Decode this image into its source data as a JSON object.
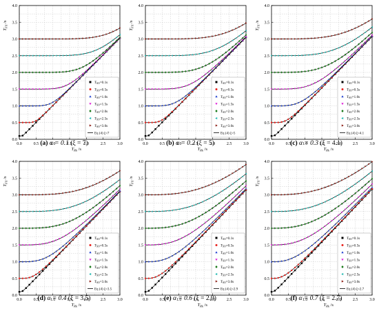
{
  "chart_data": [
    {
      "type": "line",
      "panel_label": "(a)",
      "alpha_label": "α = 0.1",
      "xi_label": "(ξ = 7)",
      "eq_label": "Eq (4) ξ=7",
      "alpha": 0.1,
      "xi": 7,
      "x_axis": {
        "label_main": "T",
        "label_sub": "Rk",
        "label_unit": "/s",
        "ticks": [
          "0.0",
          "0.5",
          "1.0",
          "1.5",
          "2.0",
          "2.5",
          "3.0"
        ],
        "range": [
          0,
          3
        ]
      },
      "y_axis": {
        "label_main": "T",
        "label_sub": "FX",
        "label_unit": "/s",
        "ticks": [
          "0.0",
          "0.5",
          "1.0",
          "1.5",
          "2.0",
          "2.5",
          "3.0",
          "3.5",
          "4.0"
        ],
        "range": [
          0,
          4
        ]
      },
      "grid": true,
      "legend_position": "bottom-right",
      "series": [
        {
          "name": "0.1s",
          "T0": 0.1,
          "color": "#000000",
          "marker": "square"
        },
        {
          "name": "0.5s",
          "T0": 0.5,
          "color": "#e8231e",
          "marker": "circle"
        },
        {
          "name": "1.0s",
          "T0": 1.0,
          "color": "#1f3fd0",
          "marker": "triangle-up"
        },
        {
          "name": "1.5s",
          "T0": 1.5,
          "color": "#e020d8",
          "marker": "triangle-down"
        },
        {
          "name": "2.0s",
          "T0": 2.0,
          "color": "#1a7a1a",
          "marker": "diamond"
        },
        {
          "name": "2.5s",
          "T0": 2.5,
          "color": "#1fb8b0",
          "marker": "triangle-left"
        },
        {
          "name": "3.0s",
          "T0": 3.0,
          "color": "#8a1a10",
          "marker": "triangle-right"
        }
      ]
    },
    {
      "type": "line",
      "panel_label": "(b)",
      "alpha_label": "α = 0.2",
      "xi_label": "(ξ = 5)",
      "eq_label": "Eq (4) ξ=5",
      "alpha": 0.2,
      "xi": 5,
      "x_axis": {
        "label_main": "T",
        "label_sub": "Rk",
        "label_unit": "/s",
        "ticks": [
          "0.0",
          "0.5",
          "1.0",
          "1.5",
          "2.0",
          "2.5",
          "3.0"
        ],
        "range": [
          0,
          3
        ]
      },
      "y_axis": {
        "label_main": "T",
        "label_sub": "FX",
        "label_unit": "/s",
        "ticks": [
          "0.0",
          "0.5",
          "1.0",
          "1.5",
          "2.0",
          "2.5",
          "3.0",
          "3.5",
          "4.0"
        ],
        "range": [
          0,
          4
        ]
      },
      "grid": true,
      "legend_position": "bottom-right",
      "series": [
        {
          "name": "0.1s",
          "T0": 0.1,
          "color": "#000000",
          "marker": "square"
        },
        {
          "name": "0.5s",
          "T0": 0.5,
          "color": "#e8231e",
          "marker": "circle"
        },
        {
          "name": "1.0s",
          "T0": 1.0,
          "color": "#1f3fd0",
          "marker": "triangle-up"
        },
        {
          "name": "1.5s",
          "T0": 1.5,
          "color": "#e020d8",
          "marker": "triangle-down"
        },
        {
          "name": "2.0s",
          "T0": 2.0,
          "color": "#1a7a1a",
          "marker": "diamond"
        },
        {
          "name": "2.5s",
          "T0": 2.5,
          "color": "#1fb8b0",
          "marker": "triangle-left"
        },
        {
          "name": "3.0s",
          "T0": 3.0,
          "color": "#8a1a10",
          "marker": "triangle-right"
        }
      ]
    },
    {
      "type": "line",
      "panel_label": "(c)",
      "alpha_label": "α = 0.3",
      "xi_label": "(ξ = 4.1)",
      "eq_label": "Eq (4) ξ=4.1",
      "alpha": 0.3,
      "xi": 4.1,
      "x_axis": {
        "label_main": "T",
        "label_sub": "Rk",
        "label_unit": "/s",
        "ticks": [
          "0.0",
          "0.5",
          "1.0",
          "1.5",
          "2.0",
          "2.5",
          "3.0"
        ],
        "range": [
          0,
          3
        ]
      },
      "y_axis": {
        "label_main": "T",
        "label_sub": "FX",
        "label_unit": "/s",
        "ticks": [
          "0.0",
          "0.5",
          "1.0",
          "1.5",
          "2.0",
          "2.5",
          "3.0",
          "3.5",
          "4.0"
        ],
        "range": [
          0,
          4
        ]
      },
      "grid": true,
      "legend_position": "bottom-right",
      "series": [
        {
          "name": "0.1s",
          "T0": 0.1,
          "color": "#000000",
          "marker": "square"
        },
        {
          "name": "0.5s",
          "T0": 0.5,
          "color": "#e8231e",
          "marker": "circle"
        },
        {
          "name": "1.0s",
          "T0": 1.0,
          "color": "#1f3fd0",
          "marker": "triangle-up"
        },
        {
          "name": "1.5s",
          "T0": 1.5,
          "color": "#e020d8",
          "marker": "triangle-down"
        },
        {
          "name": "2.0s",
          "T0": 2.0,
          "color": "#1a7a1a",
          "marker": "diamond"
        },
        {
          "name": "2.5s",
          "T0": 2.5,
          "color": "#1fb8b0",
          "marker": "triangle-left"
        },
        {
          "name": "3.0s",
          "T0": 3.0,
          "color": "#8a1a10",
          "marker": "triangle-right"
        }
      ]
    },
    {
      "type": "line",
      "panel_label": "(d)",
      "alpha_label": "α = 0.4",
      "xi_label": "(ξ = 3.5)",
      "eq_label": "Eq (4) ξ=3.5",
      "alpha": 0.4,
      "xi": 3.5,
      "x_axis": {
        "label_main": "T",
        "label_sub": "Rk",
        "label_unit": "/s",
        "ticks": [
          "0.0",
          "0.5",
          "1.0",
          "1.5",
          "2.0",
          "2.5",
          "3.0"
        ],
        "range": [
          0,
          3
        ]
      },
      "y_axis": {
        "label_main": "T",
        "label_sub": "FX",
        "label_unit": "/s",
        "ticks": [
          "0.0",
          "0.5",
          "1.0",
          "1.5",
          "2.0",
          "2.5",
          "3.0",
          "3.5",
          "4.0"
        ],
        "range": [
          0,
          4
        ]
      },
      "grid": true,
      "legend_position": "bottom-right",
      "series": [
        {
          "name": "0.1s",
          "T0": 0.1,
          "color": "#000000",
          "marker": "square"
        },
        {
          "name": "0.5s",
          "T0": 0.5,
          "color": "#e8231e",
          "marker": "circle"
        },
        {
          "name": "1.0s",
          "T0": 1.0,
          "color": "#1f3fd0",
          "marker": "triangle-up"
        },
        {
          "name": "1.5s",
          "T0": 1.5,
          "color": "#e020d8",
          "marker": "triangle-down"
        },
        {
          "name": "2.0s",
          "T0": 2.0,
          "color": "#1a7a1a",
          "marker": "diamond"
        },
        {
          "name": "2.5s",
          "T0": 2.5,
          "color": "#1fb8b0",
          "marker": "triangle-left"
        },
        {
          "name": "3.0s",
          "T0": 3.0,
          "color": "#8a1a10",
          "marker": "triangle-right"
        }
      ]
    },
    {
      "type": "line",
      "panel_label": "(e)",
      "alpha_label": "α = 0.6",
      "xi_label": "(ξ = 2.9)",
      "eq_label": "Eq (4) ξ=2.9",
      "alpha": 0.6,
      "xi": 2.9,
      "x_axis": {
        "label_main": "T",
        "label_sub": "Rk",
        "label_unit": "/s",
        "ticks": [
          "0.0",
          "0.5",
          "1.0",
          "1.5",
          "2.0",
          "2.5",
          "3.0"
        ],
        "range": [
          0,
          3
        ]
      },
      "y_axis": {
        "label_main": "T",
        "label_sub": "FX",
        "label_unit": "/s",
        "ticks": [
          "0.0",
          "0.5",
          "1.0",
          "1.5",
          "2.0",
          "2.5",
          "3.0",
          "3.5",
          "4.0"
        ],
        "range": [
          0,
          4
        ]
      },
      "grid": true,
      "legend_position": "bottom-right",
      "series": [
        {
          "name": "0.1s",
          "T0": 0.1,
          "color": "#000000",
          "marker": "square"
        },
        {
          "name": "0.5s",
          "T0": 0.5,
          "color": "#e8231e",
          "marker": "circle"
        },
        {
          "name": "1.0s",
          "T0": 1.0,
          "color": "#1f3fd0",
          "marker": "triangle-up"
        },
        {
          "name": "1.5s",
          "T0": 1.5,
          "color": "#e020d8",
          "marker": "triangle-down"
        },
        {
          "name": "2.0s",
          "T0": 2.0,
          "color": "#1a7a1a",
          "marker": "diamond"
        },
        {
          "name": "2.5s",
          "T0": 2.5,
          "color": "#1fb8b0",
          "marker": "triangle-left"
        },
        {
          "name": "3.0s",
          "T0": 3.0,
          "color": "#8a1a10",
          "marker": "triangle-right"
        }
      ]
    },
    {
      "type": "line",
      "panel_label": "(f)",
      "alpha_label": "α = 0.7",
      "xi_label": "(ξ = 2.7)",
      "eq_label": "Eq (4) ξ=2.7",
      "alpha": 0.7,
      "xi": 2.7,
      "x_axis": {
        "label_main": "T",
        "label_sub": "Rk",
        "label_unit": "/s",
        "ticks": [
          "0.0",
          "0.5",
          "1.0",
          "1.5",
          "2.0",
          "2.5",
          "3.0"
        ],
        "range": [
          0,
          3
        ]
      },
      "y_axis": {
        "label_main": "T",
        "label_sub": "FX",
        "label_unit": "/s",
        "ticks": [
          "0.0",
          "0.5",
          "1.0",
          "1.5",
          "2.0",
          "2.5",
          "3.0",
          "3.5",
          "4.0"
        ],
        "range": [
          0,
          4
        ]
      },
      "grid": true,
      "legend_position": "bottom-right",
      "series": [
        {
          "name": "0.1s",
          "T0": 0.1,
          "color": "#000000",
          "marker": "square"
        },
        {
          "name": "0.5s",
          "T0": 0.5,
          "color": "#e8231e",
          "marker": "circle"
        },
        {
          "name": "1.0s",
          "T0": 1.0,
          "color": "#1f3fd0",
          "marker": "triangle-up"
        },
        {
          "name": "1.5s",
          "T0": 1.5,
          "color": "#e020d8",
          "marker": "triangle-down"
        },
        {
          "name": "2.0s",
          "T0": 2.0,
          "color": "#1a7a1a",
          "marker": "diamond"
        },
        {
          "name": "2.5s",
          "T0": 2.5,
          "color": "#1fb8b0",
          "marker": "triangle-left"
        },
        {
          "name": "3.0s",
          "T0": 3.0,
          "color": "#8a1a10",
          "marker": "triangle-right"
        }
      ]
    }
  ]
}
